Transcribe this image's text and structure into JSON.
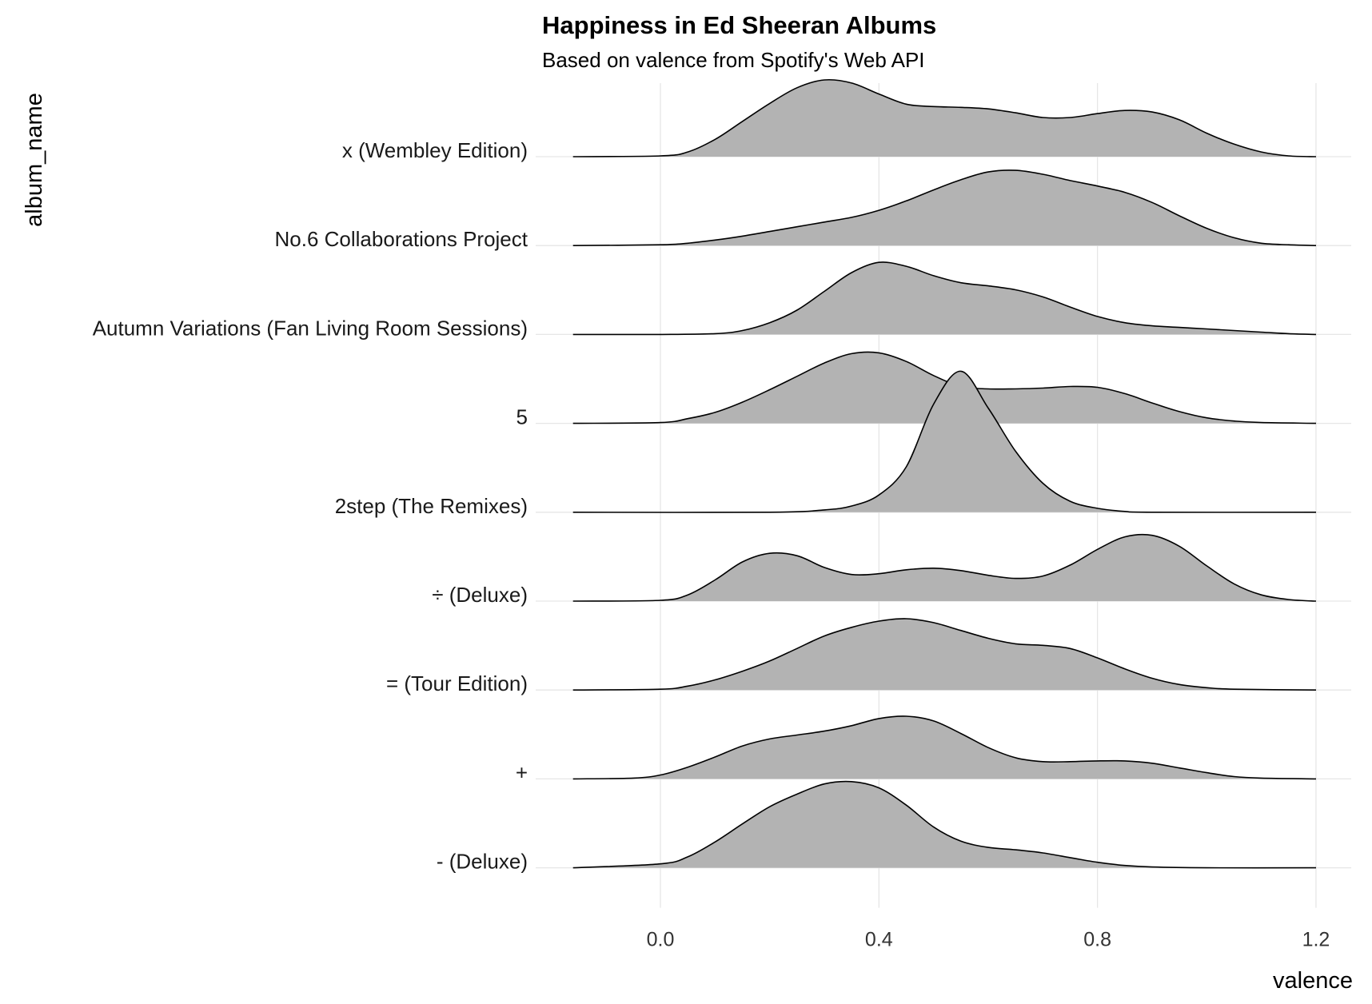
{
  "chart_data": {
    "type": "ridgeline",
    "title": "Happiness in Ed Sheeran Albums",
    "subtitle": "Based on valence from Spotify's Web API",
    "xlabel": "valence",
    "ylabel": "album_name",
    "xlim": [
      -0.16,
      1.2
    ],
    "xticks": [
      0.0,
      0.4,
      0.8,
      1.2
    ],
    "xtick_labels": [
      "0.0",
      "0.4",
      "0.8",
      "1.2"
    ],
    "grid": true,
    "fill_color": "#b3b3b3",
    "line_color": "#000000",
    "series": [
      {
        "name": "x (Wembley Edition)",
        "points": [
          [
            -0.16,
            0
          ],
          [
            0.0,
            0.01
          ],
          [
            0.05,
            0.06
          ],
          [
            0.1,
            0.22
          ],
          [
            0.15,
            0.45
          ],
          [
            0.2,
            0.68
          ],
          [
            0.25,
            0.88
          ],
          [
            0.3,
            0.98
          ],
          [
            0.35,
            0.94
          ],
          [
            0.4,
            0.8
          ],
          [
            0.45,
            0.67
          ],
          [
            0.5,
            0.64
          ],
          [
            0.55,
            0.63
          ],
          [
            0.6,
            0.61
          ],
          [
            0.65,
            0.56
          ],
          [
            0.7,
            0.5
          ],
          [
            0.75,
            0.5
          ],
          [
            0.8,
            0.55
          ],
          [
            0.85,
            0.59
          ],
          [
            0.9,
            0.57
          ],
          [
            0.95,
            0.47
          ],
          [
            1.0,
            0.3
          ],
          [
            1.05,
            0.16
          ],
          [
            1.1,
            0.06
          ],
          [
            1.15,
            0.01
          ],
          [
            1.2,
            0
          ]
        ]
      },
      {
        "name": "No.6 Collaborations Project",
        "points": [
          [
            -0.16,
            0
          ],
          [
            0.0,
            0.01
          ],
          [
            0.05,
            0.03
          ],
          [
            0.1,
            0.07
          ],
          [
            0.15,
            0.12
          ],
          [
            0.2,
            0.18
          ],
          [
            0.25,
            0.24
          ],
          [
            0.3,
            0.3
          ],
          [
            0.35,
            0.36
          ],
          [
            0.4,
            0.45
          ],
          [
            0.45,
            0.57
          ],
          [
            0.5,
            0.71
          ],
          [
            0.55,
            0.84
          ],
          [
            0.6,
            0.94
          ],
          [
            0.65,
            0.96
          ],
          [
            0.7,
            0.91
          ],
          [
            0.75,
            0.83
          ],
          [
            0.8,
            0.76
          ],
          [
            0.85,
            0.68
          ],
          [
            0.9,
            0.55
          ],
          [
            0.95,
            0.38
          ],
          [
            1.0,
            0.22
          ],
          [
            1.05,
            0.1
          ],
          [
            1.1,
            0.03
          ],
          [
            1.15,
            0.01
          ],
          [
            1.2,
            0
          ]
        ]
      },
      {
        "name": "Autumn Variations (Fan Living Room Sessions)",
        "points": [
          [
            -0.16,
            0
          ],
          [
            0.0,
            0
          ],
          [
            0.1,
            0.01
          ],
          [
            0.15,
            0.05
          ],
          [
            0.2,
            0.15
          ],
          [
            0.25,
            0.31
          ],
          [
            0.3,
            0.55
          ],
          [
            0.35,
            0.79
          ],
          [
            0.4,
            0.92
          ],
          [
            0.45,
            0.87
          ],
          [
            0.5,
            0.75
          ],
          [
            0.55,
            0.66
          ],
          [
            0.6,
            0.62
          ],
          [
            0.65,
            0.57
          ],
          [
            0.7,
            0.48
          ],
          [
            0.75,
            0.35
          ],
          [
            0.8,
            0.23
          ],
          [
            0.85,
            0.15
          ],
          [
            0.9,
            0.11
          ],
          [
            0.95,
            0.09
          ],
          [
            1.0,
            0.07
          ],
          [
            1.05,
            0.05
          ],
          [
            1.1,
            0.03
          ],
          [
            1.15,
            0.01
          ],
          [
            1.2,
            0
          ]
        ]
      },
      {
        "name": "5",
        "points": [
          [
            -0.16,
            0
          ],
          [
            0.0,
            0.01
          ],
          [
            0.05,
            0.06
          ],
          [
            0.1,
            0.14
          ],
          [
            0.15,
            0.27
          ],
          [
            0.2,
            0.43
          ],
          [
            0.25,
            0.6
          ],
          [
            0.3,
            0.77
          ],
          [
            0.35,
            0.89
          ],
          [
            0.4,
            0.9
          ],
          [
            0.45,
            0.79
          ],
          [
            0.5,
            0.61
          ],
          [
            0.55,
            0.47
          ],
          [
            0.6,
            0.44
          ],
          [
            0.65,
            0.44
          ],
          [
            0.7,
            0.45
          ],
          [
            0.75,
            0.47
          ],
          [
            0.8,
            0.46
          ],
          [
            0.85,
            0.38
          ],
          [
            0.9,
            0.26
          ],
          [
            0.95,
            0.15
          ],
          [
            1.0,
            0.07
          ],
          [
            1.05,
            0.03
          ],
          [
            1.1,
            0.01
          ],
          [
            1.2,
            0
          ]
        ]
      },
      {
        "name": "2step (The Remixes)",
        "points": [
          [
            -0.16,
            0
          ],
          [
            0.2,
            0
          ],
          [
            0.3,
            0.03
          ],
          [
            0.35,
            0.08
          ],
          [
            0.4,
            0.22
          ],
          [
            0.45,
            0.58
          ],
          [
            0.5,
            1.38
          ],
          [
            0.55,
            1.8
          ],
          [
            0.6,
            1.33
          ],
          [
            0.65,
            0.78
          ],
          [
            0.7,
            0.37
          ],
          [
            0.75,
            0.14
          ],
          [
            0.8,
            0.05
          ],
          [
            0.85,
            0.01
          ],
          [
            0.9,
            0
          ],
          [
            1.2,
            0
          ]
        ]
      },
      {
        "name": "÷ (Deluxe)",
        "points": [
          [
            -0.16,
            0
          ],
          [
            0.0,
            0.01
          ],
          [
            0.05,
            0.08
          ],
          [
            0.1,
            0.27
          ],
          [
            0.15,
            0.5
          ],
          [
            0.2,
            0.61
          ],
          [
            0.25,
            0.58
          ],
          [
            0.3,
            0.43
          ],
          [
            0.35,
            0.34
          ],
          [
            0.4,
            0.35
          ],
          [
            0.45,
            0.4
          ],
          [
            0.5,
            0.42
          ],
          [
            0.55,
            0.39
          ],
          [
            0.6,
            0.33
          ],
          [
            0.65,
            0.29
          ],
          [
            0.7,
            0.32
          ],
          [
            0.75,
            0.46
          ],
          [
            0.8,
            0.66
          ],
          [
            0.85,
            0.82
          ],
          [
            0.9,
            0.84
          ],
          [
            0.95,
            0.7
          ],
          [
            1.0,
            0.45
          ],
          [
            1.05,
            0.22
          ],
          [
            1.1,
            0.08
          ],
          [
            1.15,
            0.02
          ],
          [
            1.2,
            0
          ]
        ]
      },
      {
        "name": "= (Tour Edition)",
        "points": [
          [
            -0.16,
            0
          ],
          [
            0.0,
            0.01
          ],
          [
            0.05,
            0.05
          ],
          [
            0.1,
            0.13
          ],
          [
            0.15,
            0.24
          ],
          [
            0.2,
            0.37
          ],
          [
            0.25,
            0.53
          ],
          [
            0.3,
            0.69
          ],
          [
            0.35,
            0.8
          ],
          [
            0.4,
            0.88
          ],
          [
            0.45,
            0.91
          ],
          [
            0.5,
            0.86
          ],
          [
            0.55,
            0.76
          ],
          [
            0.6,
            0.66
          ],
          [
            0.65,
            0.59
          ],
          [
            0.7,
            0.57
          ],
          [
            0.75,
            0.53
          ],
          [
            0.8,
            0.41
          ],
          [
            0.85,
            0.27
          ],
          [
            0.9,
            0.15
          ],
          [
            0.95,
            0.07
          ],
          [
            1.0,
            0.03
          ],
          [
            1.05,
            0.01
          ],
          [
            1.2,
            0
          ]
        ]
      },
      {
        "name": "+",
        "points": [
          [
            -0.16,
            0
          ],
          [
            -0.05,
            0.01
          ],
          [
            0.0,
            0.05
          ],
          [
            0.05,
            0.15
          ],
          [
            0.1,
            0.28
          ],
          [
            0.15,
            0.42
          ],
          [
            0.2,
            0.51
          ],
          [
            0.25,
            0.56
          ],
          [
            0.3,
            0.61
          ],
          [
            0.35,
            0.68
          ],
          [
            0.4,
            0.77
          ],
          [
            0.45,
            0.8
          ],
          [
            0.5,
            0.74
          ],
          [
            0.55,
            0.58
          ],
          [
            0.6,
            0.4
          ],
          [
            0.65,
            0.27
          ],
          [
            0.7,
            0.22
          ],
          [
            0.75,
            0.22
          ],
          [
            0.8,
            0.23
          ],
          [
            0.85,
            0.23
          ],
          [
            0.9,
            0.2
          ],
          [
            0.95,
            0.14
          ],
          [
            1.0,
            0.08
          ],
          [
            1.05,
            0.03
          ],
          [
            1.1,
            0.01
          ],
          [
            1.2,
            0
          ]
        ]
      },
      {
        "name": "- (Deluxe)",
        "points": [
          [
            -0.16,
            0
          ],
          [
            0.0,
            0.05
          ],
          [
            0.05,
            0.14
          ],
          [
            0.1,
            0.33
          ],
          [
            0.15,
            0.56
          ],
          [
            0.2,
            0.78
          ],
          [
            0.25,
            0.94
          ],
          [
            0.3,
            1.07
          ],
          [
            0.35,
            1.1
          ],
          [
            0.4,
            1.02
          ],
          [
            0.45,
            0.8
          ],
          [
            0.5,
            0.52
          ],
          [
            0.55,
            0.34
          ],
          [
            0.6,
            0.26
          ],
          [
            0.65,
            0.23
          ],
          [
            0.7,
            0.19
          ],
          [
            0.75,
            0.13
          ],
          [
            0.8,
            0.07
          ],
          [
            0.85,
            0.03
          ],
          [
            0.9,
            0.01
          ],
          [
            1.0,
            0
          ],
          [
            1.2,
            0
          ]
        ]
      }
    ]
  }
}
